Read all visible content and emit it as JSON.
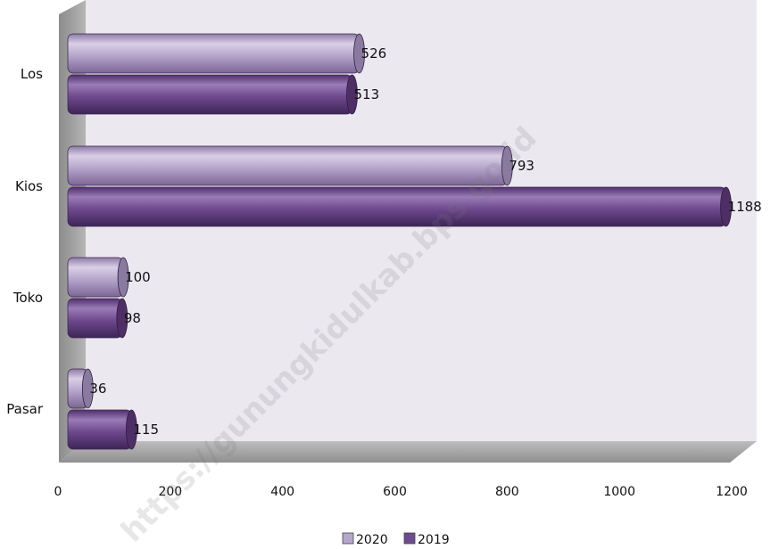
{
  "chart_data": {
    "type": "bar",
    "orientation": "horizontal",
    "categories": [
      "Los",
      "Kios",
      "Toko",
      "Pasar"
    ],
    "series": [
      {
        "name": "2020",
        "values": [
          526,
          793,
          100,
          36
        ],
        "color": "#b7a6cc"
      },
      {
        "name": "2019",
        "values": [
          513,
          1188,
          98,
          115
        ],
        "color": "#6f4a8e"
      }
    ],
    "xlim": [
      0,
      1200
    ],
    "xticks": [
      0,
      200,
      400,
      600,
      800,
      1000,
      1200
    ],
    "legend_position": "bottom",
    "grid": false
  },
  "watermark": "https://gunungkidulkab.bps.go.id"
}
